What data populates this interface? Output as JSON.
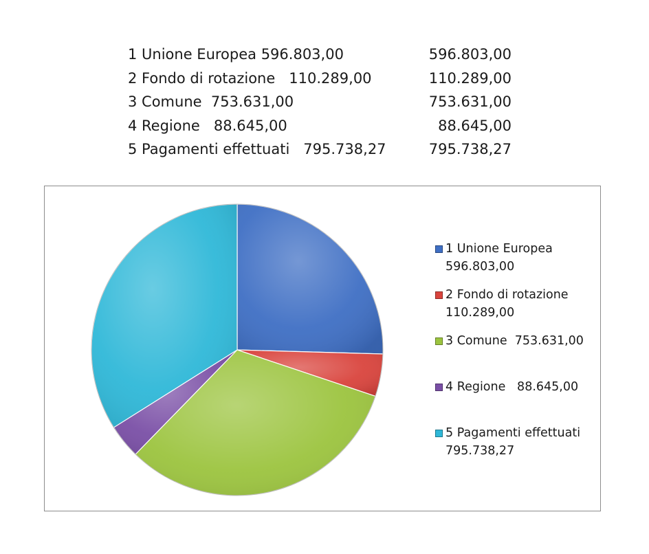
{
  "table": {
    "rows": [
      {
        "label": "1 Unione Europea 596.803,00",
        "value": "596.803,00"
      },
      {
        "label": "2 Fondo di rotazione   110.289,00",
        "value": "110.289,00"
      },
      {
        "label": "3 Comune  753.631,00",
        "value": "753.631,00"
      },
      {
        "label": "4 Regione   88.645,00",
        "value": "88.645,00"
      },
      {
        "label": "5 Pagamenti effettuati   795.738,27",
        "value": "795.738,27"
      }
    ]
  },
  "chart_data": {
    "type": "pie",
    "title": "",
    "legend_position": "right",
    "start_angle": "12 o'clock",
    "direction": "clockwise",
    "slices": [
      {
        "label": "1 Unione Europea 596.803,00",
        "value": 596803.0,
        "color": "#3f6fc4"
      },
      {
        "label": "2 Fondo di rotazione   110.289,00",
        "value": 110289.0,
        "color": "#d9443d"
      },
      {
        "label": "3 Comune  753.631,00",
        "value": 753631.0,
        "color": "#9cc43f"
      },
      {
        "label": "4 Regione   88.645,00",
        "value": 88645.0,
        "color": "#7a4fa6"
      },
      {
        "label": "5 Pagamenti effettuati   795.738,27",
        "value": 795738.27,
        "color": "#2fb8d8"
      }
    ]
  }
}
